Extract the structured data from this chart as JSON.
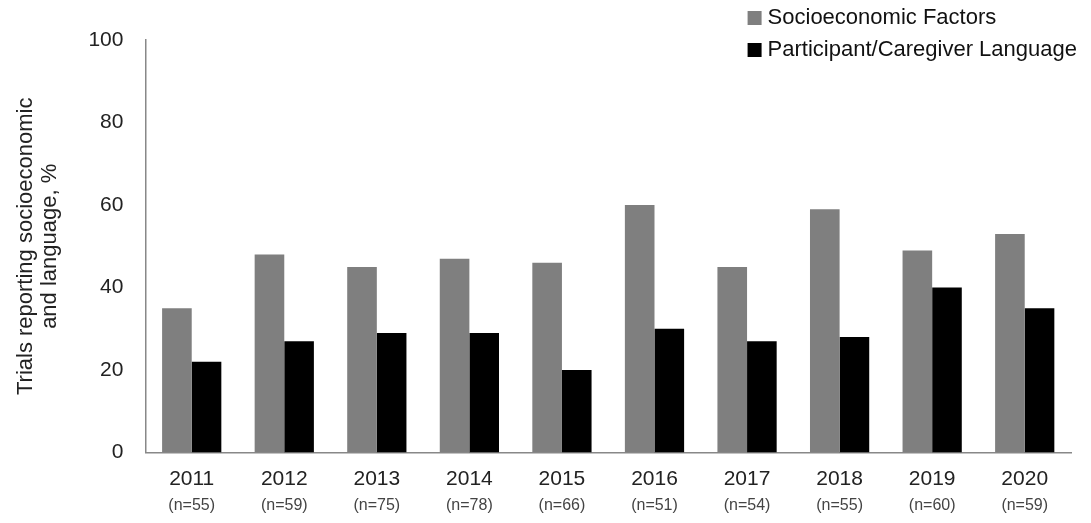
{
  "chart_data": {
    "type": "bar",
    "ylabel": "Trials reporting socioeconomic\nand language, %",
    "categories": [
      "2011\n(n=55)",
      "2012\n(n=59)",
      "2013\n(n=75)",
      "2014\n(n=78)",
      "2015\n(n=66)",
      "2016\n(n=51)",
      "2017\n(n=54)",
      "2018\n(n=55)",
      "2019\n(n=60)",
      "2020\n(n=59)"
    ],
    "series": [
      {
        "name": "Socioeconomic Factors",
        "color": "#7f7f7f",
        "values": [
          35,
          48,
          45,
          47,
          46,
          60,
          45,
          59,
          49,
          53
        ]
      },
      {
        "name": "Participant/Caregiver Language",
        "color": "#000000",
        "values": [
          22,
          27,
          29,
          29,
          20,
          30,
          27,
          28,
          40,
          35
        ]
      }
    ],
    "ylim": [
      0,
      100
    ],
    "yticks": [
      0,
      20,
      40,
      60,
      80,
      100
    ],
    "grid": false,
    "legend": "top right"
  }
}
